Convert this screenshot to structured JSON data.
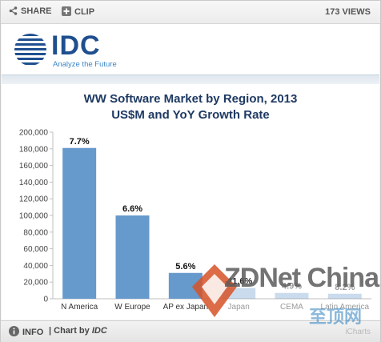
{
  "toolbar": {
    "share_label": "SHARE",
    "clip_label": "CLIP",
    "views_label": "173 VIEWS"
  },
  "logo": {
    "name": "IDC",
    "tagline": "Analyze the Future"
  },
  "footer": {
    "info_label": "INFO",
    "chart_by_prefix": "| Chart by",
    "chart_by_name": "IDC",
    "brand": "iCharts"
  },
  "watermark": {
    "text": "ZDNet China",
    "sub": "至顶网"
  },
  "colors": {
    "bar": "#6699cc",
    "title": "#1e3a63",
    "accent": "#1f4f8f"
  },
  "chart_data": {
    "type": "bar",
    "title": "WW Software Market by Region, 2013",
    "subtitle": "US$M and YoY Growth Rate",
    "categories": [
      "N America",
      "W Europe",
      "AP ex Japan",
      "Japan",
      "CEMA",
      "Latin America"
    ],
    "values": [
      181000,
      100000,
      31000,
      13000,
      7000,
      6000
    ],
    "data_labels": [
      "7.7%",
      "6.6%",
      "5.6%",
      "-11.6%",
      "4.9%",
      "8.2%"
    ],
    "ylim": [
      0,
      200000
    ],
    "yticks": [
      "0",
      "20,000",
      "40,000",
      "60,000",
      "80,000",
      "100,000",
      "120,000",
      "140,000",
      "160,000",
      "180,000",
      "200,000"
    ],
    "grid": false,
    "legend": "none"
  }
}
